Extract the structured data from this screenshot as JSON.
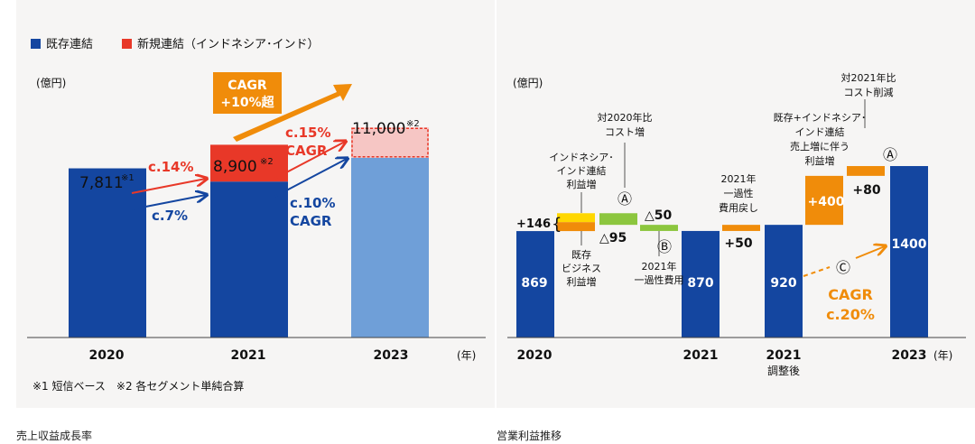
{
  "captions": {
    "left": "売上収益成長率",
    "right": "営業利益推移"
  },
  "colors": {
    "navy": "#1446a0",
    "lightblue": "#6f9fd8",
    "red": "#e83828",
    "pink": "#f6c6c4",
    "orange": "#f08c0a",
    "yellow": "#ffd700",
    "green": "#8cc63e",
    "text": "#111111"
  },
  "chart_data": [
    {
      "type": "bar",
      "unit": "(億円)",
      "year_unit": "(年)",
      "categories": [
        "2020",
        "2021",
        "2023"
      ],
      "legend": [
        {
          "name": "既存連結",
          "color": "#1446a0"
        },
        {
          "name": "新規連結（インドネシア･インド）",
          "color": "#e83828"
        }
      ],
      "series": [
        {
          "name": "既存連結",
          "values": [
            7811,
            7200,
            8300
          ]
        },
        {
          "name": "新規連結（インドネシア･インド）",
          "values": [
            0,
            1700,
            1400
          ]
        }
      ],
      "ylim": [
        0,
        12500
      ],
      "totals": [
        {
          "value": "7,811",
          "note": "※1"
        },
        {
          "value": "8,900",
          "note": "※2"
        },
        {
          "value": "11,000",
          "note": "※2"
        }
      ],
      "annotations": {
        "c14": "c.14%",
        "c7": "c.7%",
        "c15_line1": "c.15%",
        "c15_line2": "CAGR",
        "c10_line1": "c.10%",
        "c10_line2": "CAGR",
        "cagr_box_line1": "CAGR",
        "cagr_box_line2": "+10%超"
      },
      "footnote": "※1 短信ベース　※2 各セグメント単純合算"
    },
    {
      "type": "waterfall",
      "unit": "(億円)",
      "year_unit": "(年)",
      "ylim": [
        0,
        1600
      ],
      "bars": [
        {
          "label": "2020",
          "value": 869
        },
        {
          "label": "2021",
          "value": 870
        },
        {
          "label": "2021",
          "sublabel": "調整後",
          "value": 920
        },
        {
          "label": "2023",
          "value": 1400
        }
      ],
      "steps": [
        {
          "label": "+146",
          "base": 869,
          "value": 146,
          "color_top": "#ffd700",
          "color_bottom": "#f08c0a"
        },
        {
          "label": "△95",
          "base": 920,
          "value": 95,
          "color": "#8cc63e"
        },
        {
          "label": "△50",
          "base": 870,
          "value": 50,
          "color": "#8cc63e"
        },
        {
          "label": "+50",
          "base": 870,
          "value": 50,
          "color": "#f08c0a"
        },
        {
          "label": "+400",
          "base": 920,
          "value": 400,
          "color": "#f08c0a"
        },
        {
          "label": "+80",
          "base": 1320,
          "value": 80,
          "color": "#f08c0a"
        }
      ],
      "annotations": {
        "indo_line1": "インドネシア･",
        "indo_line2": "インド連結",
        "indo_line3": "利益増",
        "biz_line1": "既存",
        "biz_line2": "ビジネス",
        "biz_line3": "利益増",
        "cost_line1": "対2020年比",
        "cost_line2": "コスト増",
        "once_line1": "2021年",
        "once_line2": "一過性費用",
        "ret_line1": "2021年",
        "ret_line2": "一過性",
        "ret_line3": "費用戻し",
        "sales_line1": "既存+インドネシア･",
        "sales_line2": "インド連結",
        "sales_line3": "売上増に伴う",
        "sales_line4": "利益増",
        "cut_line1": "対2021年比",
        "cut_line2": "コスト削減",
        "mark_a": "Ⓐ",
        "mark_b": "Ⓑ",
        "mark_c": "Ⓒ",
        "cagr_line1": "CAGR",
        "cagr_line2": "c.20%"
      }
    }
  ]
}
